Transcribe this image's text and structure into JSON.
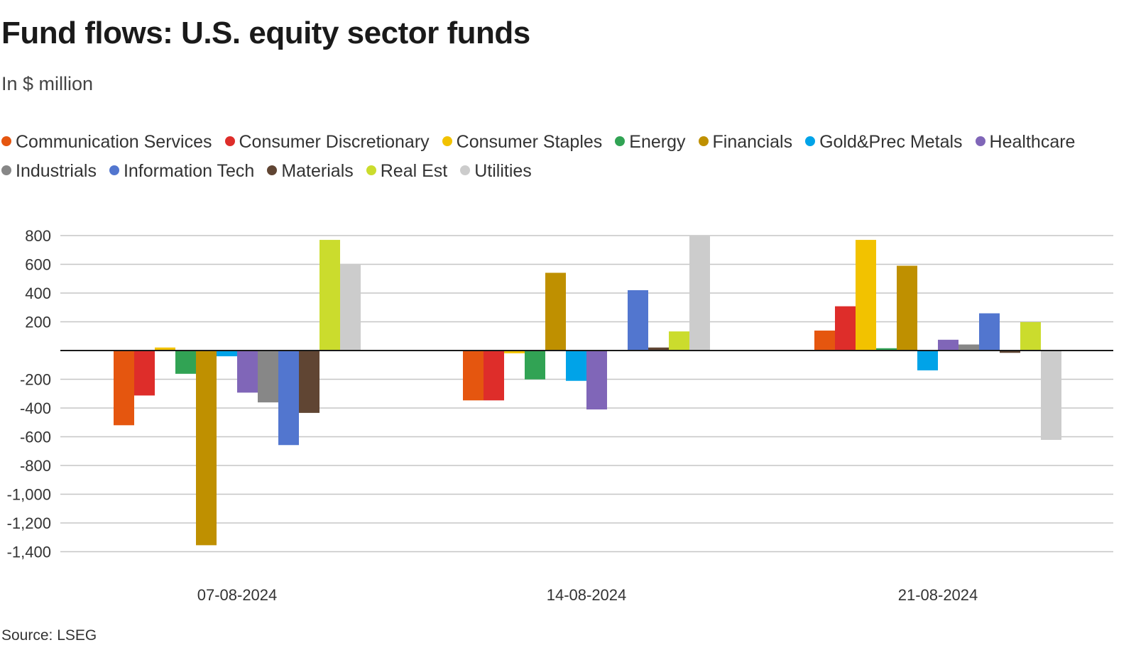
{
  "chart_data": {
    "type": "bar",
    "title": "Fund flows: U.S. equity sector funds",
    "subtitle": "In $ million",
    "source": "Source: LSEG",
    "xlabel": "",
    "ylabel": "",
    "ylim": [
      -1400,
      800
    ],
    "yticks": [
      800,
      600,
      400,
      200,
      -200,
      -400,
      -600,
      -800,
      -1000,
      -1200,
      -1400
    ],
    "ytick_labels": [
      "800",
      "600",
      "400",
      "200",
      "-200",
      "-400",
      "-600",
      "-800",
      "-1,000",
      "-1,200",
      "-1,400"
    ],
    "grid": true,
    "legend_position": "top-left",
    "categories": [
      "07-08-2024",
      "14-08-2024",
      "21-08-2024"
    ],
    "series": [
      {
        "name": "Communication Services",
        "color": "#e5560f",
        "values": [
          -520,
          -347,
          139
        ]
      },
      {
        "name": "Consumer Discretionary",
        "color": "#de2d2a",
        "values": [
          -313,
          -347,
          308
        ]
      },
      {
        "name": "Consumer Staples",
        "color": "#f2c200",
        "values": [
          21,
          -19,
          770
        ]
      },
      {
        "name": "Energy",
        "color": "#31a354",
        "values": [
          -162,
          -201,
          16
        ]
      },
      {
        "name": "Financials",
        "color": "#bf9000",
        "values": [
          -1355,
          541,
          590
        ]
      },
      {
        "name": "Gold&Prec Metals",
        "color": "#00a3e8",
        "values": [
          -40,
          -211,
          -138
        ]
      },
      {
        "name": "Healthcare",
        "color": "#8066b8",
        "values": [
          -293,
          -410,
          75
        ]
      },
      {
        "name": "Industrials",
        "color": "#878787",
        "values": [
          -361,
          0,
          42
        ]
      },
      {
        "name": "Information Tech",
        "color": "#5276cf",
        "values": [
          -658,
          420,
          259
        ]
      },
      {
        "name": "Materials",
        "color": "#604533",
        "values": [
          -434,
          21,
          -16
        ]
      },
      {
        "name": "Real Est",
        "color": "#cbdc2d",
        "values": [
          770,
          133,
          198
        ]
      },
      {
        "name": "Utilities",
        "color": "#cccccc",
        "values": [
          603,
          830,
          -622
        ]
      }
    ]
  }
}
